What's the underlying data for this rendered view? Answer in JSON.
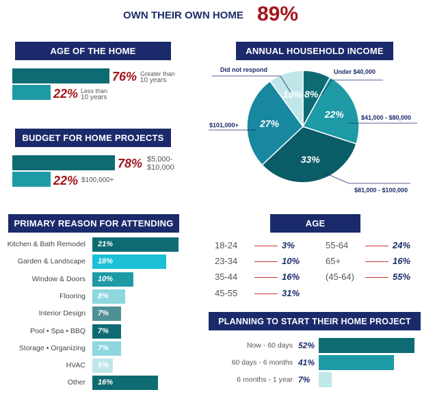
{
  "colors": {
    "navy": "#1b2a6b",
    "red": "#a3151c",
    "dark_teal": "#0e6b73",
    "mid_teal": "#1e9aa6",
    "cyan": "#1cc0d6",
    "light_teal": "#8ed7df",
    "pale": "#bfe7e9",
    "line_red": "#c8313a"
  },
  "headline": {
    "label": "OWN THEIR OWN HOME",
    "value": "89%"
  },
  "chart_data": [
    {
      "type": "bar",
      "title": "AGE OF THE HOME",
      "categories": [
        "Greater than 10 years",
        "Less than 10 years"
      ],
      "values": [
        76,
        22
      ],
      "value_labels": [
        "76%",
        "22%"
      ],
      "notes": [
        [
          "Greater than",
          "10 years"
        ],
        [
          "Less than",
          "10 years"
        ]
      ]
    },
    {
      "type": "bar",
      "title": "BUDGET FOR HOME PROJECTS",
      "categories": [
        "$5,000-$10,000",
        "$100,000+"
      ],
      "values": [
        78,
        22
      ],
      "value_labels": [
        "78%",
        "22%"
      ],
      "notes": [
        [
          "$5,000-",
          "$10,000"
        ],
        [
          "$100,000+"
        ]
      ]
    },
    {
      "type": "pie",
      "title": "ANNUAL HOUSEHOLD INCOME",
      "categories": [
        "Under $40,000",
        "$41,000 - $80,000",
        "$81,000 - $100,000",
        "$101,000+",
        "Did not respond"
      ],
      "values": [
        8,
        22,
        33,
        27,
        10
      ],
      "value_labels": [
        "8%",
        "22%",
        "33%",
        "27%",
        "10%"
      ]
    },
    {
      "type": "bar",
      "title": "PRIMARY REASON FOR ATTENDING",
      "categories": [
        "Kitchen & Bath Remodel",
        "Garden & Landscape",
        "Window & Doors",
        "Flooring",
        "Interior Design",
        "Pool • Spa • BBQ",
        "Storage • Organizing",
        "HVAC",
        "Other"
      ],
      "values": [
        21,
        18,
        10,
        8,
        7,
        7,
        7,
        5,
        16
      ],
      "value_labels": [
        "21%",
        "18%",
        "10%",
        "8%",
        "7%",
        "7%",
        "7%",
        "5%",
        "16%"
      ]
    },
    {
      "type": "table",
      "title": "AGE",
      "categories": [
        "18-24",
        "23-34",
        "35-44",
        "45-55",
        "55-64",
        "65+",
        "(45-64)"
      ],
      "values": [
        3,
        10,
        16,
        31,
        24,
        16,
        55
      ],
      "value_labels": [
        "3%",
        "10%",
        "16%",
        "31%",
        "24%",
        "16%",
        "55%"
      ]
    },
    {
      "type": "bar",
      "title": "PLANNING TO START THEIR HOME PROJECT",
      "categories": [
        "Now - 60 days",
        "60 days - 6 months",
        "6 months - 1 year"
      ],
      "values": [
        52,
        41,
        7
      ],
      "value_labels": [
        "52%",
        "41%",
        "7%"
      ]
    }
  ]
}
